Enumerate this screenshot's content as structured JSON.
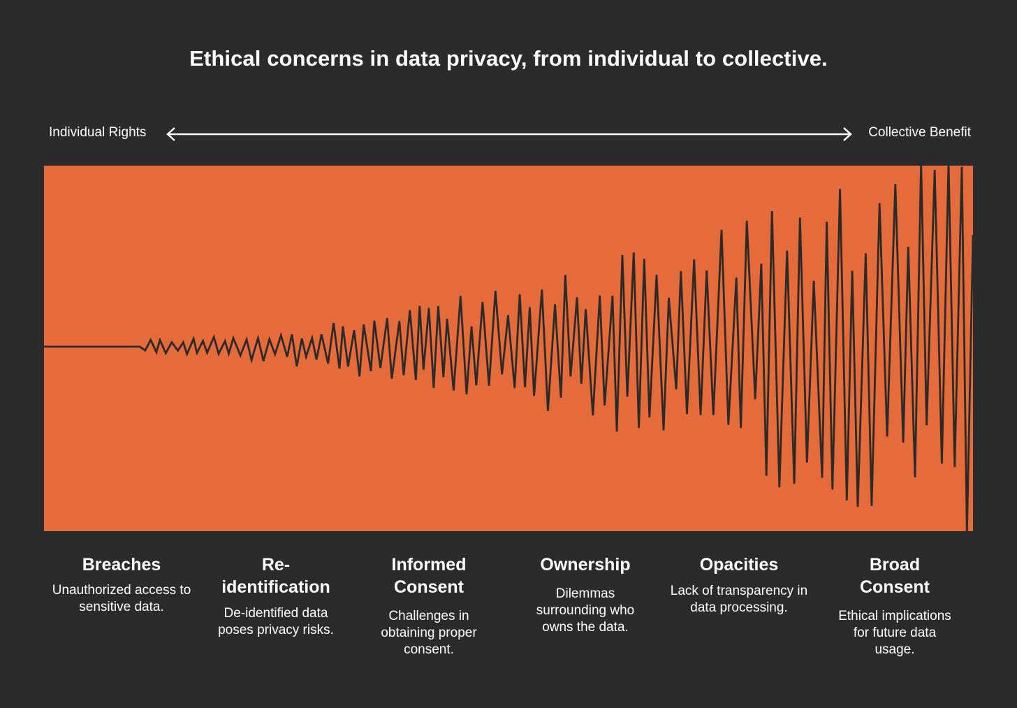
{
  "title": "Ethical concerns in data privacy, from individual to collective.",
  "axis": {
    "left_label": "Individual Rights",
    "right_label": "Collective Benefit"
  },
  "colors": {
    "background": "#2b2b2b",
    "panel": "#e56c3a",
    "waveform": "#2b2b2b",
    "text": "#ffffff"
  },
  "categories": [
    {
      "title": "Breaches",
      "description": "Unauthorized access to sensitive data."
    },
    {
      "title": "Re-identification",
      "description": "De-identified data poses privacy risks."
    },
    {
      "title": "Informed Consent",
      "description": "Challenges in obtaining proper consent."
    },
    {
      "title": "Ownership",
      "description": "Dilemmas surrounding who owns the data."
    },
    {
      "title": "Opacities",
      "description": "Lack of transparency in data processing."
    },
    {
      "title": "Broad Consent",
      "description": "Ethical implications for future data usage."
    }
  ]
}
